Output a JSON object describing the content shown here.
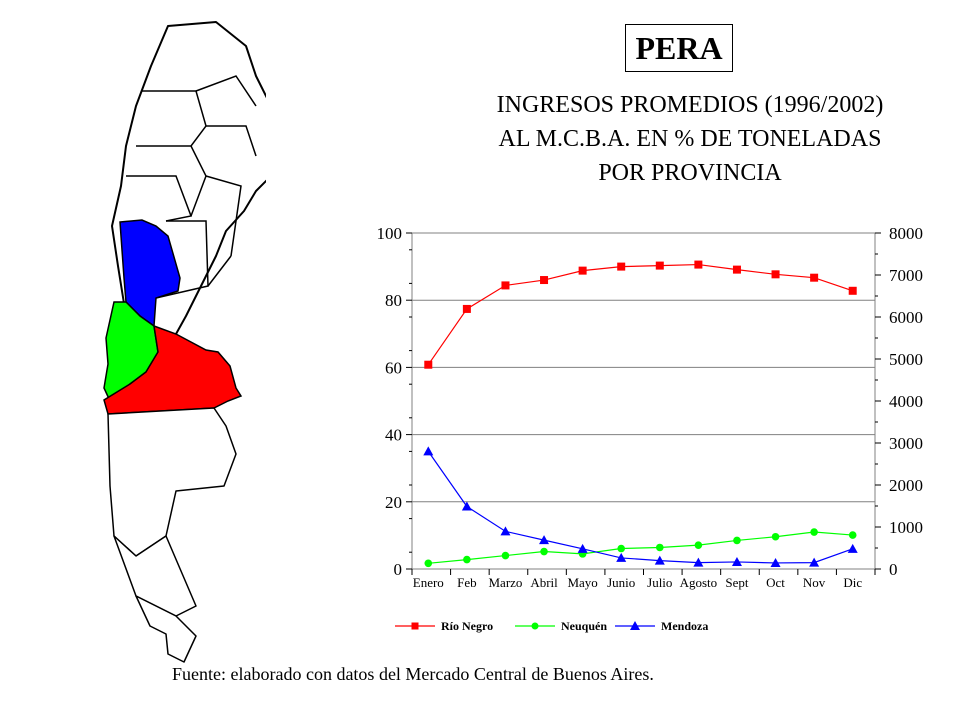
{
  "header": {
    "product": "PERA",
    "subtitle_lines": [
      "INGRESOS PROMEDIOS (1996/2002)",
      "AL M.C.B.A. EN % DE TONELADAS",
      "POR PROVINCIA"
    ]
  },
  "map": {
    "regions": [
      {
        "name": "Mendoza",
        "color": "#0000ff"
      },
      {
        "name": "Neuquén",
        "color": "#00ff00"
      },
      {
        "name": "Río Negro",
        "color": "#ff0000"
      }
    ]
  },
  "chart_data": {
    "type": "line",
    "categories": [
      "Enero",
      "Feb",
      "Marzo",
      "Abril",
      "Mayo",
      "Junio",
      "Julio",
      "Agosto",
      "Sept",
      "Oct",
      "Nov",
      "Dic"
    ],
    "y_left": {
      "range": [
        0,
        100
      ],
      "ticks": [
        "0",
        "20",
        "40",
        "60",
        "80",
        "100"
      ]
    },
    "y_right": {
      "range": [
        0,
        8000
      ],
      "ticks": [
        "0",
        "1000",
        "2000",
        "3000",
        "4000",
        "5000",
        "6000",
        "7000",
        "8000"
      ]
    },
    "grid": true,
    "legend_position": "bottom",
    "series": [
      {
        "name": "Río Negro",
        "color": "#ff0000",
        "marker": "square",
        "values": [
          60.8,
          77.4,
          84.4,
          86.0,
          88.8,
          90.0,
          90.3,
          90.6,
          89.1,
          87.7,
          86.7,
          82.8
        ]
      },
      {
        "name": "Neuquén",
        "color": "#00ff00",
        "marker": "circle",
        "values": [
          1.7,
          2.8,
          4.0,
          5.2,
          4.5,
          6.1,
          6.4,
          7.1,
          8.5,
          9.6,
          11.0,
          10.1
        ]
      },
      {
        "name": "Mendoza",
        "color": "#0000ff",
        "marker": "triangle",
        "values": [
          35.0,
          18.6,
          11.2,
          8.6,
          6.0,
          3.3,
          2.5,
          1.9,
          2.1,
          1.8,
          1.9,
          6.0
        ]
      }
    ]
  },
  "footer": {
    "source": "Fuente: elaborado con datos del Mercado Central de Buenos Aires."
  }
}
